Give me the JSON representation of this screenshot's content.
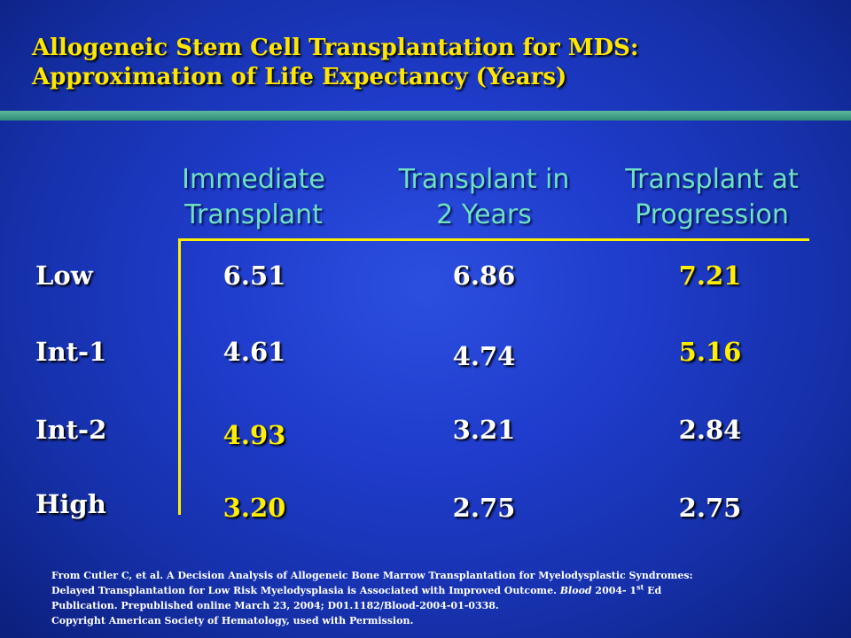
{
  "title": {
    "line1": "Allogeneic Stem Cell Transplantation for MDS:",
    "line2": "Approximation of Life Expectancy (Years)"
  },
  "columns": [
    {
      "line1": "Immediate",
      "line2": "Transplant"
    },
    {
      "line1": "Transplant in",
      "line2": "2 Years"
    },
    {
      "line1": "Transplant at",
      "line2": "Progression"
    }
  ],
  "rows": [
    {
      "label": "Low",
      "values": [
        "6.51",
        "6.86",
        "7.21"
      ],
      "highlighted": [
        false,
        false,
        true
      ]
    },
    {
      "label": "Int-1",
      "values": [
        "4.61",
        "4.74",
        "5.16"
      ],
      "highlighted": [
        false,
        false,
        true
      ]
    },
    {
      "label": "Int-2",
      "values": [
        "4.93",
        "3.21",
        "2.84"
      ],
      "highlighted": [
        true,
        false,
        false
      ]
    },
    {
      "label": "High",
      "values": [
        "3.20",
        "2.75",
        "2.75"
      ],
      "highlighted": [
        true,
        false,
        false
      ]
    }
  ],
  "colors": {
    "highlight": "#ffee00",
    "normal": "#ffffff"
  },
  "footnote": {
    "line1": "From  Cutler C,  et al. A Decision Analysis of Allogeneic Bone Marrow Transplantation for Myelodysplastic Syndromes:",
    "line2": "Delayed Transplantation for Low Risk Myelodysplasia is Associated with Improved Outcome.",
    "journal": "Blood",
    "line2_after": " 2004- 1",
    "sup": "st",
    "line2_end": " Ed",
    "line3": "Publication.  Prepublished online March 23, 2004; D01.1182/Blood-2004-01-0338.",
    "line4": "Copyright American Society  of Hematology,  used with Permission."
  }
}
